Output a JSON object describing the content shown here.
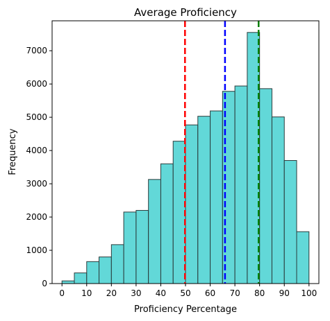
{
  "chart_data": {
    "type": "bar",
    "title": "Average Proficiency",
    "xlabel": "Proficiency Percentage",
    "ylabel": "Frequency",
    "xlim": [
      -4,
      104
    ],
    "ylim": [
      0,
      7900
    ],
    "xticks": [
      "0",
      "10",
      "20",
      "30",
      "40",
      "50",
      "60",
      "70",
      "80",
      "90",
      "100"
    ],
    "yticks": [
      "0",
      "1000",
      "2000",
      "3000",
      "4000",
      "5000",
      "6000",
      "7000"
    ],
    "bins": [
      {
        "x0": 0,
        "x1": 5,
        "value": 80
      },
      {
        "x0": 5,
        "x1": 10,
        "value": 320
      },
      {
        "x0": 10,
        "x1": 15,
        "value": 660
      },
      {
        "x0": 15,
        "x1": 20,
        "value": 800
      },
      {
        "x0": 20,
        "x1": 25,
        "value": 1170
      },
      {
        "x0": 25,
        "x1": 30,
        "value": 2150
      },
      {
        "x0": 30,
        "x1": 35,
        "value": 2200
      },
      {
        "x0": 35,
        "x1": 40,
        "value": 3130
      },
      {
        "x0": 40,
        "x1": 45,
        "value": 3600
      },
      {
        "x0": 45,
        "x1": 50,
        "value": 4280
      },
      {
        "x0": 50,
        "x1": 55,
        "value": 4770
      },
      {
        "x0": 55,
        "x1": 60,
        "value": 5030
      },
      {
        "x0": 60,
        "x1": 65,
        "value": 5190
      },
      {
        "x0": 65,
        "x1": 70,
        "value": 5780
      },
      {
        "x0": 70,
        "x1": 75,
        "value": 5940
      },
      {
        "x0": 75,
        "x1": 80,
        "value": 7550
      },
      {
        "x0": 80,
        "x1": 85,
        "value": 5860
      },
      {
        "x0": 85,
        "x1": 90,
        "value": 5010
      },
      {
        "x0": 90,
        "x1": 95,
        "value": 3700
      },
      {
        "x0": 95,
        "x1": 100,
        "value": 1560
      }
    ],
    "bar_color": "#40CFCF",
    "bar_edge_color": "#2b3b3b",
    "vlines": [
      {
        "x": 49.8,
        "color": "#ff0000",
        "style": "dashed"
      },
      {
        "x": 66.0,
        "color": "#0000ff",
        "style": "dashed"
      },
      {
        "x": 79.6,
        "color": "#008000",
        "style": "dashed"
      }
    ],
    "grid": false
  }
}
